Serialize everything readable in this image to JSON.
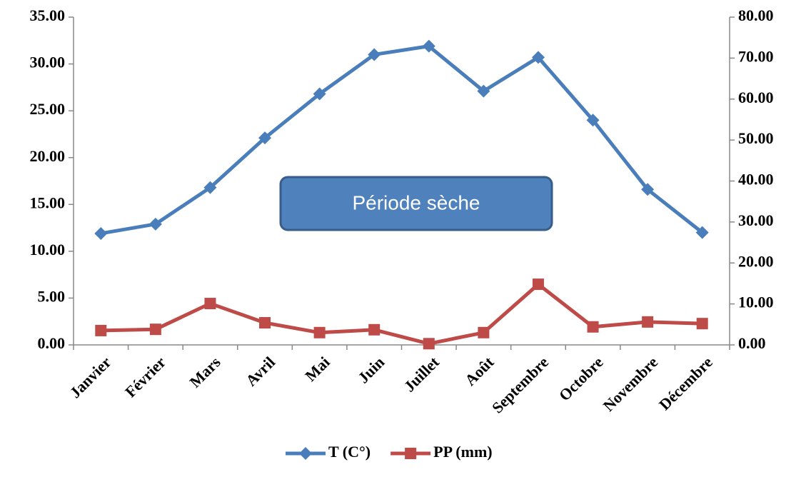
{
  "chart_data": {
    "type": "line",
    "categories": [
      "Janvier",
      "Février",
      "Mars",
      "Avril",
      "Mai",
      "Juin",
      "Juillet",
      "Août",
      "Septembre",
      "Octobre",
      "Novembre",
      "Décembre"
    ],
    "series": [
      {
        "name": "T (C°)",
        "color": "#4a7ebb",
        "marker": "diamond",
        "values": [
          11.9,
          12.9,
          16.8,
          22.1,
          26.8,
          31.0,
          31.9,
          27.1,
          30.7,
          24.0,
          16.6,
          12.0
        ]
      },
      {
        "name": "PP (mm)",
        "color": "#be4b48",
        "marker": "square",
        "axis": "y2",
        "values": [
          3.5,
          3.8,
          10.1,
          5.4,
          3.0,
          3.7,
          0.3,
          3.0,
          14.8,
          4.4,
          5.6,
          5.2
        ]
      }
    ],
    "ylim": [
      0,
      35
    ],
    "yticks": [
      {
        "value": 0,
        "label": "0.00"
      },
      {
        "value": 5,
        "label": "5.00"
      },
      {
        "value": 10,
        "label": "10.00"
      },
      {
        "value": 15,
        "label": "15.00"
      },
      {
        "value": 20,
        "label": "20.00"
      },
      {
        "value": 25,
        "label": "25.00"
      },
      {
        "value": 30,
        "label": "30.00"
      },
      {
        "value": 35,
        "label": "35.00"
      }
    ],
    "y2lim": [
      0,
      80
    ],
    "y2ticks": [
      {
        "value": 0,
        "label": "0.00"
      },
      {
        "value": 10,
        "label": "10.00"
      },
      {
        "value": 20,
        "label": "20.00"
      },
      {
        "value": 30,
        "label": "30.00"
      },
      {
        "value": 40,
        "label": "40.00"
      },
      {
        "value": 50,
        "label": "50.00"
      },
      {
        "value": 60,
        "label": "60.00"
      },
      {
        "value": 70,
        "label": "70.00"
      },
      {
        "value": 80,
        "label": "80.00"
      }
    ],
    "annotation": "Période sèche",
    "grid": false,
    "legend": "bottom"
  }
}
